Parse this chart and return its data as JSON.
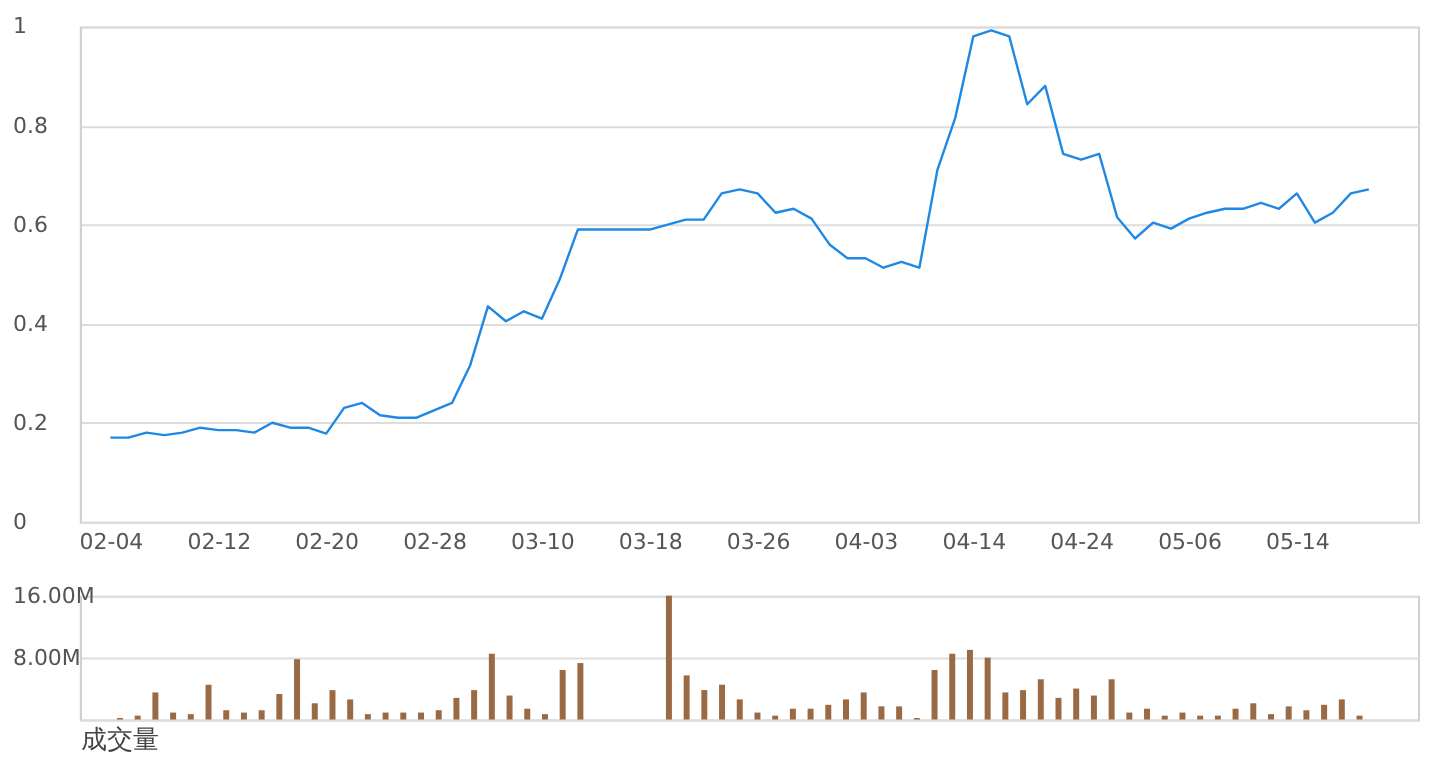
{
  "chart_data": [
    {
      "type": "line",
      "categories": [
        "02-04",
        null,
        null,
        null,
        null,
        null,
        "02-12",
        null,
        null,
        null,
        null,
        null,
        "02-20",
        null,
        null,
        null,
        null,
        null,
        "02-28",
        null,
        null,
        null,
        null,
        null,
        "03-10",
        null,
        null,
        null,
        null,
        null,
        "03-18",
        null,
        null,
        null,
        null,
        null,
        "03-26",
        null,
        null,
        null,
        null,
        null,
        "04-03",
        null,
        null,
        null,
        null,
        null,
        "04-14",
        null,
        null,
        null,
        null,
        null,
        "04-24",
        null,
        null,
        null,
        null,
        null,
        "05-06",
        null,
        null,
        null,
        null,
        null,
        "05-14",
        null,
        null,
        null,
        null
      ],
      "series": [
        {
          "color": "#1e88e5",
          "values": [
            0.17,
            0.17,
            0.18,
            0.175,
            0.18,
            0.19,
            0.185,
            0.185,
            0.18,
            0.2,
            0.19,
            0.19,
            0.178,
            0.23,
            0.24,
            0.215,
            0.21,
            0.21,
            0.225,
            0.24,
            0.315,
            0.435,
            0.405,
            0.425,
            0.41,
            0.49,
            0.59,
            0.59,
            0.59,
            0.59,
            0.59,
            0.6,
            0.61,
            0.61,
            0.663,
            0.671,
            0.663,
            0.624,
            0.632,
            0.612,
            0.56,
            0.532,
            0.532,
            0.513,
            0.525,
            0.513,
            0.71,
            0.816,
            0.98,
            0.992,
            0.98,
            0.843,
            0.88,
            0.743,
            0.731,
            0.743,
            0.615,
            0.572,
            0.604,
            0.592,
            0.612,
            0.624,
            0.632,
            0.632,
            0.644,
            0.632,
            0.663,
            0.604,
            0.624,
            0.663,
            0.671
          ]
        }
      ],
      "ylim": [
        0,
        1
      ],
      "yticks": [
        0,
        0.2,
        0.4,
        0.6,
        0.8,
        1
      ],
      "grid": "y",
      "marker": "none",
      "line_style": "solid"
    },
    {
      "type": "bar",
      "xlabel": "成交量",
      "categories": [
        null,
        null,
        null,
        null,
        null,
        null,
        null,
        null,
        null,
        null,
        null,
        null,
        null,
        null,
        null,
        null,
        null,
        null,
        null,
        null,
        null,
        null,
        null,
        null,
        null,
        null,
        null,
        null,
        null,
        null,
        null,
        null,
        null,
        null,
        null,
        null,
        null,
        null,
        null,
        null,
        null,
        null,
        null,
        null,
        null,
        null,
        null,
        null,
        null,
        null,
        null,
        null,
        null,
        null,
        null,
        null,
        null,
        null,
        null,
        null,
        null,
        null,
        null,
        null,
        null,
        null,
        null,
        null,
        null,
        null,
        null
      ],
      "series": [
        {
          "color": "#9a6a44",
          "values": [
            0.2,
            0.5,
            3.5,
            0.9,
            0.7,
            4.5,
            1.2,
            0.9,
            1.2,
            3.3,
            7.8,
            2.1,
            3.8,
            2.6,
            0.7,
            0.9,
            0.9,
            0.9,
            1.2,
            2.8,
            3.8,
            8.5,
            3.1,
            1.4,
            0.7,
            6.4,
            7.3,
            null,
            null,
            null,
            null,
            16.0,
            5.7,
            3.8,
            4.5,
            2.6,
            0.9,
            0.5,
            1.4,
            1.4,
            1.9,
            2.6,
            3.5,
            1.7,
            1.7,
            0.2,
            6.4,
            8.5,
            9.0,
            8.0,
            3.5,
            3.8,
            5.2,
            2.8,
            4.0,
            3.1,
            5.2,
            0.9,
            1.4,
            0.5,
            0.9,
            0.5,
            0.5,
            1.4,
            2.1,
            0.7,
            1.7,
            1.2,
            1.9,
            2.6,
            0.5
          ]
        }
      ],
      "ylim": [
        0,
        16
      ],
      "yticks": [
        {
          "value": 0,
          "label": null
        },
        {
          "value": 8,
          "label": "8.00M"
        },
        {
          "value": 16,
          "label": "16.00M"
        }
      ],
      "grid": "y",
      "tick_labels": "y"
    }
  ]
}
